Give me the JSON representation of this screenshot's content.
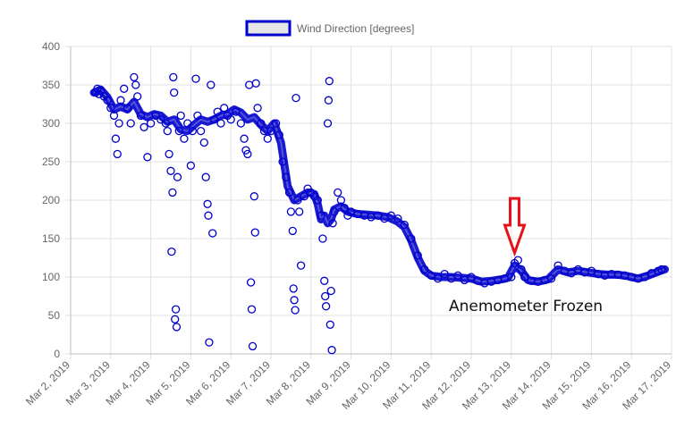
{
  "chart_data": {
    "type": "scatter",
    "title": "",
    "xlabel": "",
    "ylabel": "",
    "ylim": [
      0,
      400
    ],
    "yticks": [
      "0",
      "50",
      "100",
      "150",
      "200",
      "250",
      "300",
      "350",
      "400"
    ],
    "x_tick_labels": [
      "Mar 2, 2019",
      "Mar 3, 2019",
      "Mar 4, 2019",
      "Mar 5, 2019",
      "Mar 6, 2019",
      "Mar 7, 2019",
      "Mar 8, 2019",
      "Mar 9, 2019",
      "Mar 10, 2019",
      "Mar 11, 2019",
      "Mar 12, 2019",
      "Mar 13, 2019",
      "Mar 14, 2019",
      "Mar 15, 2019",
      "Mar 16, 2019",
      "Mar 17, 2019"
    ],
    "grid": true,
    "legend": {
      "position": "top",
      "label": "Wind Direction [degrees]"
    },
    "series": [
      {
        "name": "Wind Direction [degrees]",
        "marker": "open-circle",
        "color": "#0000cc",
        "legend_fill": "#e6e6e6",
        "points": [
          [
            "Mar 2, 2019 15:00",
            340
          ],
          [
            "Mar 2, 2019 16:00",
            345
          ],
          [
            "Mar 2, 2019 17:00",
            338
          ],
          [
            "Mar 2, 2019 18:00",
            342
          ],
          [
            "Mar 2, 2019 20:00",
            335
          ],
          [
            "Mar 2, 2019 22:00",
            330
          ],
          [
            "Mar 3, 2019 00:00",
            320
          ],
          [
            "Mar 3, 2019 02:00",
            310
          ],
          [
            "Mar 3, 2019 03:00",
            280
          ],
          [
            "Mar 3, 2019 04:00",
            260
          ],
          [
            "Mar 3, 2019 05:00",
            300
          ],
          [
            "Mar 3, 2019 06:00",
            330
          ],
          [
            "Mar 3, 2019 08:00",
            345
          ],
          [
            "Mar 3, 2019 10:00",
            320
          ],
          [
            "Mar 3, 2019 12:00",
            300
          ],
          [
            "Mar 3, 2019 14:00",
            360
          ],
          [
            "Mar 3, 2019 15:00",
            350
          ],
          [
            "Mar 3, 2019 16:00",
            335
          ],
          [
            "Mar 3, 2019 18:00",
            310
          ],
          [
            "Mar 3, 2019 20:00",
            295
          ],
          [
            "Mar 3, 2019 22:00",
            256
          ],
          [
            "Mar 4, 2019 00:00",
            300
          ],
          [
            "Mar 4, 2019 03:00",
            310
          ],
          [
            "Mar 4, 2019 06:00",
            305
          ],
          [
            "Mar 4, 2019 09:00",
            300
          ],
          [
            "Mar 4, 2019 10:00",
            290
          ],
          [
            "Mar 4, 2019 11:00",
            260
          ],
          [
            "Mar 4, 2019 12:00",
            238
          ],
          [
            "Mar 4, 2019 12:30",
            133
          ],
          [
            "Mar 4, 2019 13:00",
            210
          ],
          [
            "Mar 4, 2019 13:30",
            360
          ],
          [
            "Mar 4, 2019 14:00",
            340
          ],
          [
            "Mar 4, 2019 14:30",
            45
          ],
          [
            "Mar 4, 2019 15:00",
            58
          ],
          [
            "Mar 4, 2019 15:30",
            35
          ],
          [
            "Mar 4, 2019 16:00",
            230
          ],
          [
            "Mar 4, 2019 17:00",
            290
          ],
          [
            "Mar 4, 2019 18:00",
            310
          ],
          [
            "Mar 4, 2019 20:00",
            280
          ],
          [
            "Mar 4, 2019 22:00",
            300
          ],
          [
            "Mar 5, 2019 00:00",
            245
          ],
          [
            "Mar 5, 2019 01:00",
            290
          ],
          [
            "Mar 5, 2019 03:00",
            358
          ],
          [
            "Mar 5, 2019 04:00",
            310
          ],
          [
            "Mar 5, 2019 06:00",
            290
          ],
          [
            "Mar 5, 2019 08:00",
            275
          ],
          [
            "Mar 5, 2019 09:00",
            230
          ],
          [
            "Mar 5, 2019 10:00",
            195
          ],
          [
            "Mar 5, 2019 10:30",
            180
          ],
          [
            "Mar 5, 2019 11:00",
            15
          ],
          [
            "Mar 5, 2019 12:00",
            350
          ],
          [
            "Mar 5, 2019 13:00",
            157
          ],
          [
            "Mar 5, 2019 14:00",
            305
          ],
          [
            "Mar 5, 2019 16:00",
            315
          ],
          [
            "Mar 5, 2019 18:00",
            300
          ],
          [
            "Mar 5, 2019 20:00",
            320
          ],
          [
            "Mar 5, 2019 22:00",
            310
          ],
          [
            "Mar 6, 2019 00:00",
            305
          ],
          [
            "Mar 6, 2019 03:00",
            315
          ],
          [
            "Mar 6, 2019 06:00",
            300
          ],
          [
            "Mar 6, 2019 08:00",
            280
          ],
          [
            "Mar 6, 2019 09:00",
            265
          ],
          [
            "Mar 6, 2019 10:00",
            260
          ],
          [
            "Mar 6, 2019 11:00",
            350
          ],
          [
            "Mar 6, 2019 12:00",
            93
          ],
          [
            "Mar 6, 2019 12:30",
            58
          ],
          [
            "Mar 6, 2019 13:00",
            10
          ],
          [
            "Mar 6, 2019 14:00",
            205
          ],
          [
            "Mar 6, 2019 14:30",
            158
          ],
          [
            "Mar 6, 2019 15:00",
            352
          ],
          [
            "Mar 6, 2019 16:00",
            320
          ],
          [
            "Mar 6, 2019 18:00",
            300
          ],
          [
            "Mar 6, 2019 20:00",
            290
          ],
          [
            "Mar 6, 2019 22:00",
            280
          ],
          [
            "Mar 7, 2019 00:00",
            290
          ],
          [
            "Mar 7, 2019 03:00",
            300
          ],
          [
            "Mar 7, 2019 05:00",
            285
          ],
          [
            "Mar 7, 2019 07:00",
            250
          ],
          [
            "Mar 7, 2019 09:00",
            230
          ],
          [
            "Mar 7, 2019 11:00",
            210
          ],
          [
            "Mar 7, 2019 12:00",
            185
          ],
          [
            "Mar 7, 2019 13:00",
            160
          ],
          [
            "Mar 7, 2019 13:30",
            85
          ],
          [
            "Mar 7, 2019 14:00",
            70
          ],
          [
            "Mar 7, 2019 14:30",
            57
          ],
          [
            "Mar 7, 2019 15:00",
            333
          ],
          [
            "Mar 7, 2019 16:00",
            200
          ],
          [
            "Mar 7, 2019 17:00",
            185
          ],
          [
            "Mar 7, 2019 18:00",
            115
          ],
          [
            "Mar 7, 2019 20:00",
            205
          ],
          [
            "Mar 7, 2019 22:00",
            215
          ],
          [
            "Mar 8, 2019 00:00",
            210
          ],
          [
            "Mar 8, 2019 02:00",
            205
          ],
          [
            "Mar 8, 2019 04:00",
            200
          ],
          [
            "Mar 8, 2019 06:00",
            180
          ],
          [
            "Mar 8, 2019 07:00",
            150
          ],
          [
            "Mar 8, 2019 08:00",
            95
          ],
          [
            "Mar 8, 2019 08:30",
            75
          ],
          [
            "Mar 8, 2019 09:00",
            62
          ],
          [
            "Mar 8, 2019 10:00",
            300
          ],
          [
            "Mar 8, 2019 10:30",
            330
          ],
          [
            "Mar 8, 2019 11:00",
            355
          ],
          [
            "Mar 8, 2019 11:30",
            38
          ],
          [
            "Mar 8, 2019 12:00",
            82
          ],
          [
            "Mar 8, 2019 12:30",
            5
          ],
          [
            "Mar 8, 2019 13:00",
            170
          ],
          [
            "Mar 8, 2019 14:00",
            185
          ],
          [
            "Mar 8, 2019 16:00",
            210
          ],
          [
            "Mar 8, 2019 18:00",
            200
          ],
          [
            "Mar 8, 2019 20:00",
            190
          ],
          [
            "Mar 8, 2019 22:00",
            180
          ],
          [
            "Mar 9, 2019 00:00",
            185
          ],
          [
            "Mar 9, 2019 04:00",
            182
          ],
          [
            "Mar 9, 2019 08:00",
            180
          ],
          [
            "Mar 9, 2019 12:00",
            178
          ],
          [
            "Mar 9, 2019 16:00",
            180
          ],
          [
            "Mar 9, 2019 20:00",
            176
          ],
          [
            "Mar 10, 2019 00:00",
            180
          ],
          [
            "Mar 10, 2019 04:00",
            176
          ],
          [
            "Mar 10, 2019 08:00",
            168
          ],
          [
            "Mar 10, 2019 12:00",
            150
          ],
          [
            "Mar 10, 2019 16:00",
            128
          ],
          [
            "Mar 10, 2019 20:00",
            110
          ],
          [
            "Mar 11, 2019 00:00",
            102
          ],
          [
            "Mar 11, 2019 04:00",
            98
          ],
          [
            "Mar 11, 2019 08:00",
            104
          ],
          [
            "Mar 11, 2019 12:00",
            98
          ],
          [
            "Mar 11, 2019 16:00",
            102
          ],
          [
            "Mar 11, 2019 20:00",
            96
          ],
          [
            "Mar 12, 2019 00:00",
            100
          ],
          [
            "Mar 12, 2019 04:00",
            95
          ],
          [
            "Mar 12, 2019 08:00",
            92
          ],
          [
            "Mar 12, 2019 12:00",
            94
          ],
          [
            "Mar 12, 2019 16:00",
            96
          ],
          [
            "Mar 12, 2019 20:00",
            98
          ],
          [
            "Mar 13, 2019 00:00",
            100
          ],
          [
            "Mar 13, 2019 02:00",
            118
          ],
          [
            "Mar 13, 2019 04:00",
            122
          ],
          [
            "Mar 13, 2019 06:00",
            110
          ],
          [
            "Mar 13, 2019 08:00",
            100
          ],
          [
            "Mar 13, 2019 12:00",
            95
          ],
          [
            "Mar 13, 2019 16:00",
            94
          ],
          [
            "Mar 13, 2019 20:00",
            96
          ],
          [
            "Mar 14, 2019 00:00",
            98
          ],
          [
            "Mar 14, 2019 04:00",
            115
          ],
          [
            "Mar 14, 2019 08:00",
            108
          ],
          [
            "Mar 14, 2019 12:00",
            105
          ],
          [
            "Mar 14, 2019 16:00",
            110
          ],
          [
            "Mar 14, 2019 20:00",
            106
          ],
          [
            "Mar 15, 2019 00:00",
            108
          ],
          [
            "Mar 15, 2019 04:00",
            104
          ],
          [
            "Mar 15, 2019 08:00",
            102
          ],
          [
            "Mar 15, 2019 12:00",
            104
          ],
          [
            "Mar 15, 2019 16:00",
            103
          ],
          [
            "Mar 15, 2019 20:00",
            102
          ],
          [
            "Mar 16, 2019 00:00",
            100
          ],
          [
            "Mar 16, 2019 04:00",
            98
          ],
          [
            "Mar 16, 2019 08:00",
            100
          ],
          [
            "Mar 16, 2019 12:00",
            105
          ],
          [
            "Mar 16, 2019 16:00",
            108
          ],
          [
            "Mar 16, 2019 18:00",
            110
          ]
        ],
        "band": [
          [
            "Mar 2, 2019 14:00",
            340
          ],
          [
            "Mar 2, 2019 18:00",
            344
          ],
          [
            "Mar 2, 2019 22:00",
            334
          ],
          [
            "Mar 3, 2019 02:00",
            318
          ],
          [
            "Mar 3, 2019 06:00",
            322
          ],
          [
            "Mar 3, 2019 10:00",
            318
          ],
          [
            "Mar 3, 2019 14:00",
            328
          ],
          [
            "Mar 3, 2019 18:00",
            312
          ],
          [
            "Mar 3, 2019 22:00",
            308
          ],
          [
            "Mar 4, 2019 02:00",
            312
          ],
          [
            "Mar 4, 2019 06:00",
            310
          ],
          [
            "Mar 4, 2019 10:00",
            302
          ],
          [
            "Mar 4, 2019 14:00",
            305
          ],
          [
            "Mar 4, 2019 18:00",
            292
          ],
          [
            "Mar 4, 2019 22:00",
            290
          ],
          [
            "Mar 5, 2019 02:00",
            298
          ],
          [
            "Mar 5, 2019 06:00",
            305
          ],
          [
            "Mar 5, 2019 10:00",
            302
          ],
          [
            "Mar 5, 2019 14:00",
            305
          ],
          [
            "Mar 5, 2019 18:00",
            310
          ],
          [
            "Mar 5, 2019 22:00",
            312
          ],
          [
            "Mar 6, 2019 02:00",
            318
          ],
          [
            "Mar 6, 2019 06:00",
            314
          ],
          [
            "Mar 6, 2019 10:00",
            305
          ],
          [
            "Mar 6, 2019 14:00",
            308
          ],
          [
            "Mar 6, 2019 18:00",
            298
          ],
          [
            "Mar 6, 2019 22:00",
            290
          ],
          [
            "Mar 7, 2019 02:00",
            300
          ],
          [
            "Mar 7, 2019 06:00",
            275
          ],
          [
            "Mar 7, 2019 10:00",
            218
          ],
          [
            "Mar 7, 2019 14:00",
            200
          ],
          [
            "Mar 7, 2019 18:00",
            205
          ],
          [
            "Mar 7, 2019 22:00",
            210
          ],
          [
            "Mar 8, 2019 02:00",
            208
          ],
          [
            "Mar 8, 2019 04:00",
            195
          ],
          [
            "Mar 8, 2019 06:00",
            175
          ],
          [
            "Mar 8, 2019 08:00",
            180
          ],
          [
            "Mar 8, 2019 10:00",
            170
          ],
          [
            "Mar 8, 2019 12:00",
            175
          ],
          [
            "Mar 8, 2019 14:00",
            188
          ],
          [
            "Mar 8, 2019 18:00",
            192
          ],
          [
            "Mar 8, 2019 22:00",
            185
          ],
          [
            "Mar 9, 2019 04:00",
            182
          ],
          [
            "Mar 9, 2019 10:00",
            181
          ],
          [
            "Mar 9, 2019 16:00",
            180
          ],
          [
            "Mar 9, 2019 22:00",
            178
          ],
          [
            "Mar 10, 2019 04:00",
            172
          ],
          [
            "Mar 10, 2019 08:00",
            165
          ],
          [
            "Mar 10, 2019 12:00",
            148
          ],
          [
            "Mar 10, 2019 16:00",
            125
          ],
          [
            "Mar 10, 2019 20:00",
            108
          ],
          [
            "Mar 11, 2019 00:00",
            102
          ],
          [
            "Mar 11, 2019 06:00",
            100
          ],
          [
            "Mar 11, 2019 12:00",
            100
          ],
          [
            "Mar 11, 2019 18:00",
            99
          ],
          [
            "Mar 12, 2019 00:00",
            98
          ],
          [
            "Mar 12, 2019 06:00",
            94
          ],
          [
            "Mar 12, 2019 12:00",
            95
          ],
          [
            "Mar 12, 2019 18:00",
            97
          ],
          [
            "Mar 12, 2019 22:00",
            99
          ],
          [
            "Mar 13, 2019 02:00",
            115
          ],
          [
            "Mar 13, 2019 06:00",
            108
          ],
          [
            "Mar 13, 2019 10:00",
            96
          ],
          [
            "Mar 13, 2019 16:00",
            94
          ],
          [
            "Mar 13, 2019 22:00",
            97
          ],
          [
            "Mar 14, 2019 04:00",
            110
          ],
          [
            "Mar 14, 2019 10:00",
            106
          ],
          [
            "Mar 14, 2019 16:00",
            108
          ],
          [
            "Mar 14, 2019 22:00",
            106
          ],
          [
            "Mar 15, 2019 04:00",
            104
          ],
          [
            "Mar 15, 2019 10:00",
            103
          ],
          [
            "Mar 15, 2019 16:00",
            103
          ],
          [
            "Mar 15, 2019 22:00",
            101
          ],
          [
            "Mar 16, 2019 04:00",
            98
          ],
          [
            "Mar 16, 2019 10:00",
            102
          ],
          [
            "Mar 16, 2019 16:00",
            107
          ],
          [
            "Mar 16, 2019 20:00",
            110
          ]
        ]
      }
    ],
    "annotation": {
      "text": "Anemometer Frozen",
      "arrow_color": "#e8111a",
      "arrow_at": "Mar 13, 2019 02:00",
      "arrow_direction": "down"
    }
  }
}
